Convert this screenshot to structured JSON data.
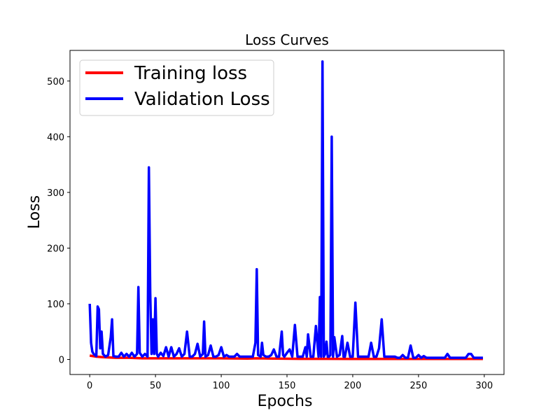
{
  "chart_data": {
    "type": "line",
    "title": "Loss Curves",
    "xlabel": "Epochs",
    "ylabel": "Loss",
    "xlim": [
      -15,
      315
    ],
    "ylim": [
      -27,
      555
    ],
    "xticks": [
      0,
      50,
      100,
      150,
      200,
      250,
      300
    ],
    "yticks": [
      0,
      100,
      200,
      300,
      400,
      500
    ],
    "grid": false,
    "legend_position": "top-left",
    "series": [
      {
        "name": "Training loss",
        "color": "#ff0000",
        "x": [
          0,
          5,
          10,
          20,
          30,
          40,
          50,
          60,
          80,
          100,
          120,
          127,
          140,
          160,
          180,
          200,
          250,
          299
        ],
        "values": [
          7,
          5,
          4,
          3,
          3,
          2,
          2,
          2,
          2,
          2,
          1.5,
          2,
          1.5,
          1.2,
          1.2,
          1,
          1,
          1
        ]
      },
      {
        "name": "Validation Loss",
        "color": "#0000ff",
        "x": [
          0,
          1,
          2,
          3,
          4,
          5,
          6,
          7,
          8,
          9,
          10,
          12,
          14,
          16,
          17,
          18,
          20,
          22,
          24,
          26,
          28,
          30,
          32,
          34,
          36,
          37,
          38,
          40,
          42,
          44,
          45,
          46,
          47,
          48,
          49,
          50,
          51,
          52,
          54,
          56,
          58,
          60,
          62,
          64,
          66,
          68,
          70,
          72,
          74,
          76,
          78,
          80,
          82,
          84,
          86,
          87,
          88,
          90,
          92,
          94,
          96,
          98,
          100,
          102,
          104,
          106,
          108,
          110,
          112,
          114,
          116,
          118,
          120,
          122,
          124,
          126,
          127,
          128,
          130,
          131,
          132,
          134,
          136,
          138,
          140,
          142,
          144,
          146,
          147,
          148,
          150,
          152,
          154,
          156,
          158,
          160,
          162,
          164,
          165,
          166,
          168,
          170,
          172,
          174,
          175,
          176,
          177,
          178,
          179,
          180,
          181,
          182,
          183,
          184,
          185,
          186,
          188,
          190,
          192,
          193,
          194,
          196,
          198,
          200,
          202,
          204,
          206,
          208,
          210,
          212,
          214,
          216,
          218,
          220,
          222,
          224,
          226,
          228,
          230,
          232,
          234,
          236,
          238,
          240,
          242,
          244,
          246,
          248,
          250,
          252,
          254,
          256,
          258,
          260,
          262,
          264,
          266,
          268,
          270,
          272,
          274,
          276,
          278,
          280,
          282,
          284,
          286,
          288,
          290,
          292,
          294,
          296,
          298,
          299
        ],
        "values": [
          100,
          30,
          14,
          10,
          8,
          6,
          95,
          90,
          20,
          50,
          10,
          5,
          8,
          40,
          72,
          6,
          5,
          5,
          12,
          5,
          10,
          5,
          12,
          5,
          10,
          130,
          12,
          5,
          10,
          5,
          345,
          120,
          10,
          72,
          10,
          110,
          10,
          5,
          12,
          6,
          22,
          5,
          22,
          5,
          10,
          20,
          5,
          10,
          50,
          5,
          5,
          10,
          28,
          5,
          10,
          68,
          5,
          8,
          25,
          5,
          5,
          8,
          22,
          5,
          8,
          5,
          5,
          5,
          10,
          5,
          5,
          5,
          5,
          5,
          5,
          30,
          162,
          8,
          5,
          30,
          8,
          5,
          5,
          8,
          18,
          5,
          5,
          50,
          8,
          5,
          12,
          18,
          5,
          62,
          5,
          5,
          5,
          22,
          5,
          45,
          5,
          5,
          60,
          5,
          112,
          5,
          535,
          5,
          10,
          32,
          5,
          5,
          8,
          400,
          5,
          40,
          5,
          8,
          42,
          5,
          5,
          30,
          5,
          5,
          102,
          5,
          5,
          5,
          5,
          5,
          30,
          5,
          5,
          20,
          72,
          5,
          5,
          5,
          5,
          5,
          3,
          3,
          8,
          3,
          3,
          25,
          3,
          3,
          8,
          3,
          6,
          3,
          3,
          3,
          3,
          3,
          3,
          3,
          3,
          10,
          3,
          3,
          3,
          3,
          3,
          3,
          3,
          10,
          10,
          3,
          3,
          3,
          3,
          3
        ]
      }
    ]
  }
}
